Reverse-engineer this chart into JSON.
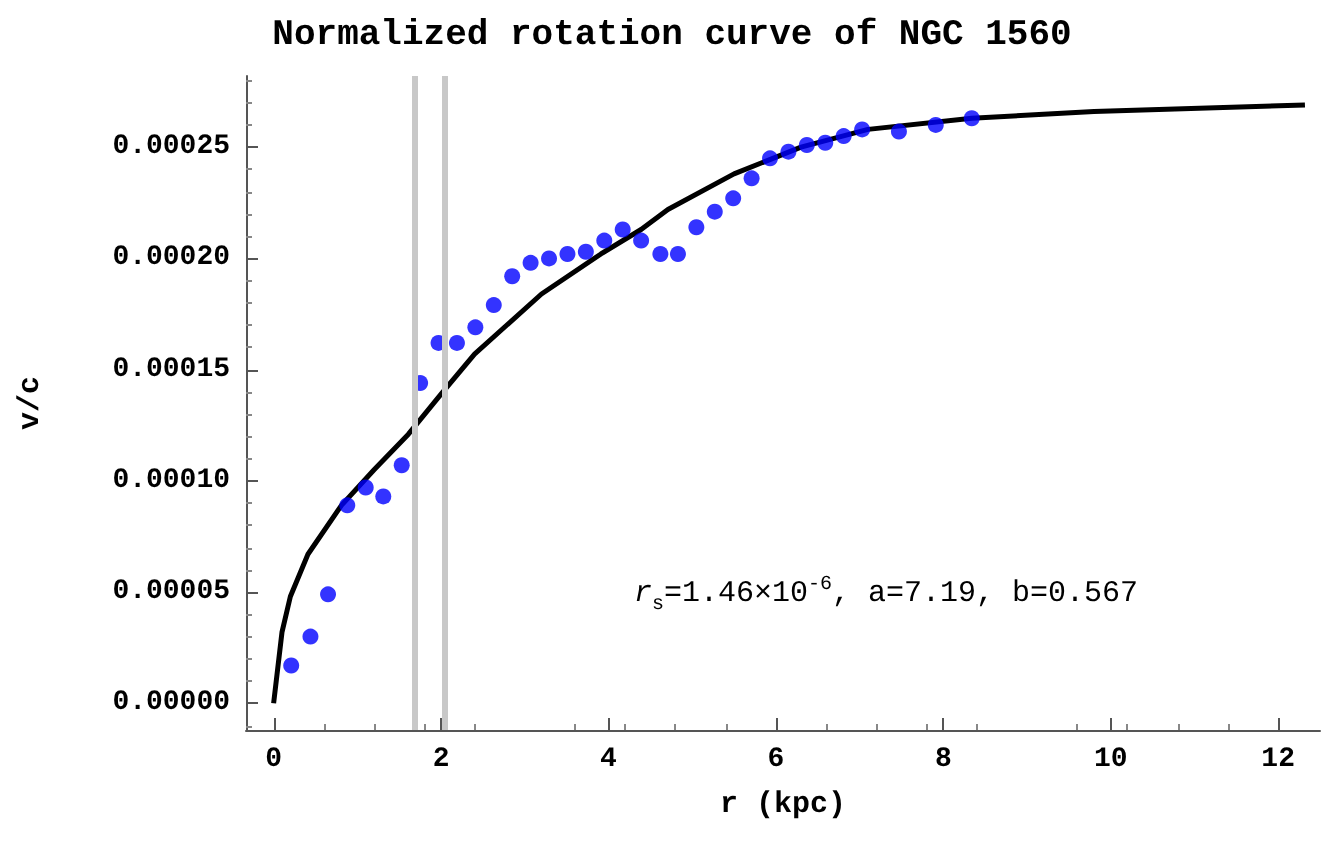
{
  "chart_data": {
    "type": "scatter",
    "title": "Normalized rotation curve of NGC 1560",
    "xlabel": "r (kpc)",
    "ylabel": "v/c",
    "xlim": [
      -0.33,
      12.5
    ],
    "ylim": [
      -1.2e-05,
      0.000282
    ],
    "xticks": [
      0,
      2,
      4,
      6,
      8,
      10,
      12
    ],
    "yticks": [
      {
        "value": 0,
        "label": "0.00000"
      },
      {
        "value": 5e-05,
        "label": "0.00005"
      },
      {
        "value": 0.0001,
        "label": "0.00010"
      },
      {
        "value": 0.00015,
        "label": "0.00015"
      },
      {
        "value": 0.0002,
        "label": "0.00020"
      },
      {
        "value": 0.00025,
        "label": "0.00025"
      }
    ],
    "grid": false,
    "marker": "circle",
    "series": [
      {
        "type": "scatter",
        "color": "#0000ff",
        "x": [
          0.21,
          0.44,
          0.65,
          0.88,
          1.1,
          1.31,
          1.53,
          1.75,
          1.97,
          2.19,
          2.41,
          2.63,
          2.85,
          3.07,
          3.29,
          3.51,
          3.73,
          3.95,
          4.17,
          4.39,
          4.62,
          4.83,
          5.05,
          5.27,
          5.49,
          5.71,
          5.93,
          6.15,
          6.37,
          6.59,
          6.81,
          7.03,
          7.47,
          7.91,
          8.34
        ],
        "values": [
          1.7e-05,
          3e-05,
          4.9e-05,
          8.9e-05,
          9.7e-05,
          9.3e-05,
          0.000107,
          0.000144,
          0.000162,
          0.000162,
          0.000169,
          0.000179,
          0.000192,
          0.000198,
          0.0002,
          0.000202,
          0.000203,
          0.000208,
          0.000213,
          0.000208,
          0.000202,
          0.000202,
          0.000214,
          0.000221,
          0.000227,
          0.000236,
          0.000245,
          0.000248,
          0.000251,
          0.000252,
          0.000255,
          0.000258,
          0.000257,
          0.00026,
          0.000263
        ]
      },
      {
        "type": "line",
        "color": "#000000",
        "marker": "none",
        "x": [
          0,
          0.1,
          0.2,
          0.41,
          0.81,
          1.2,
          1.61,
          2.0,
          2.4,
          3.2,
          3.91,
          4.39,
          4.71,
          5.5,
          6.3,
          7.1,
          8.34,
          9.8,
          12.32
        ],
        "values": [
          0,
          3.2e-05,
          4.8e-05,
          6.7e-05,
          8.9e-05,
          0.000105,
          0.000121,
          0.000139,
          0.000157,
          0.000184,
          0.000202,
          0.000213,
          0.000222,
          0.000238,
          0.00025,
          0.000258,
          0.000263,
          0.000266,
          0.000269
        ]
      }
    ],
    "ref_lines": [
      {
        "axis": "x",
        "value": 1.69,
        "color": "#c8c8c8"
      },
      {
        "axis": "x",
        "value": 2.05,
        "color": "#c8c8c8"
      }
    ],
    "annotations": [
      "r$_{s}$=1.46×10$^{-6}$, a=7.19, b=0.567"
    ]
  }
}
